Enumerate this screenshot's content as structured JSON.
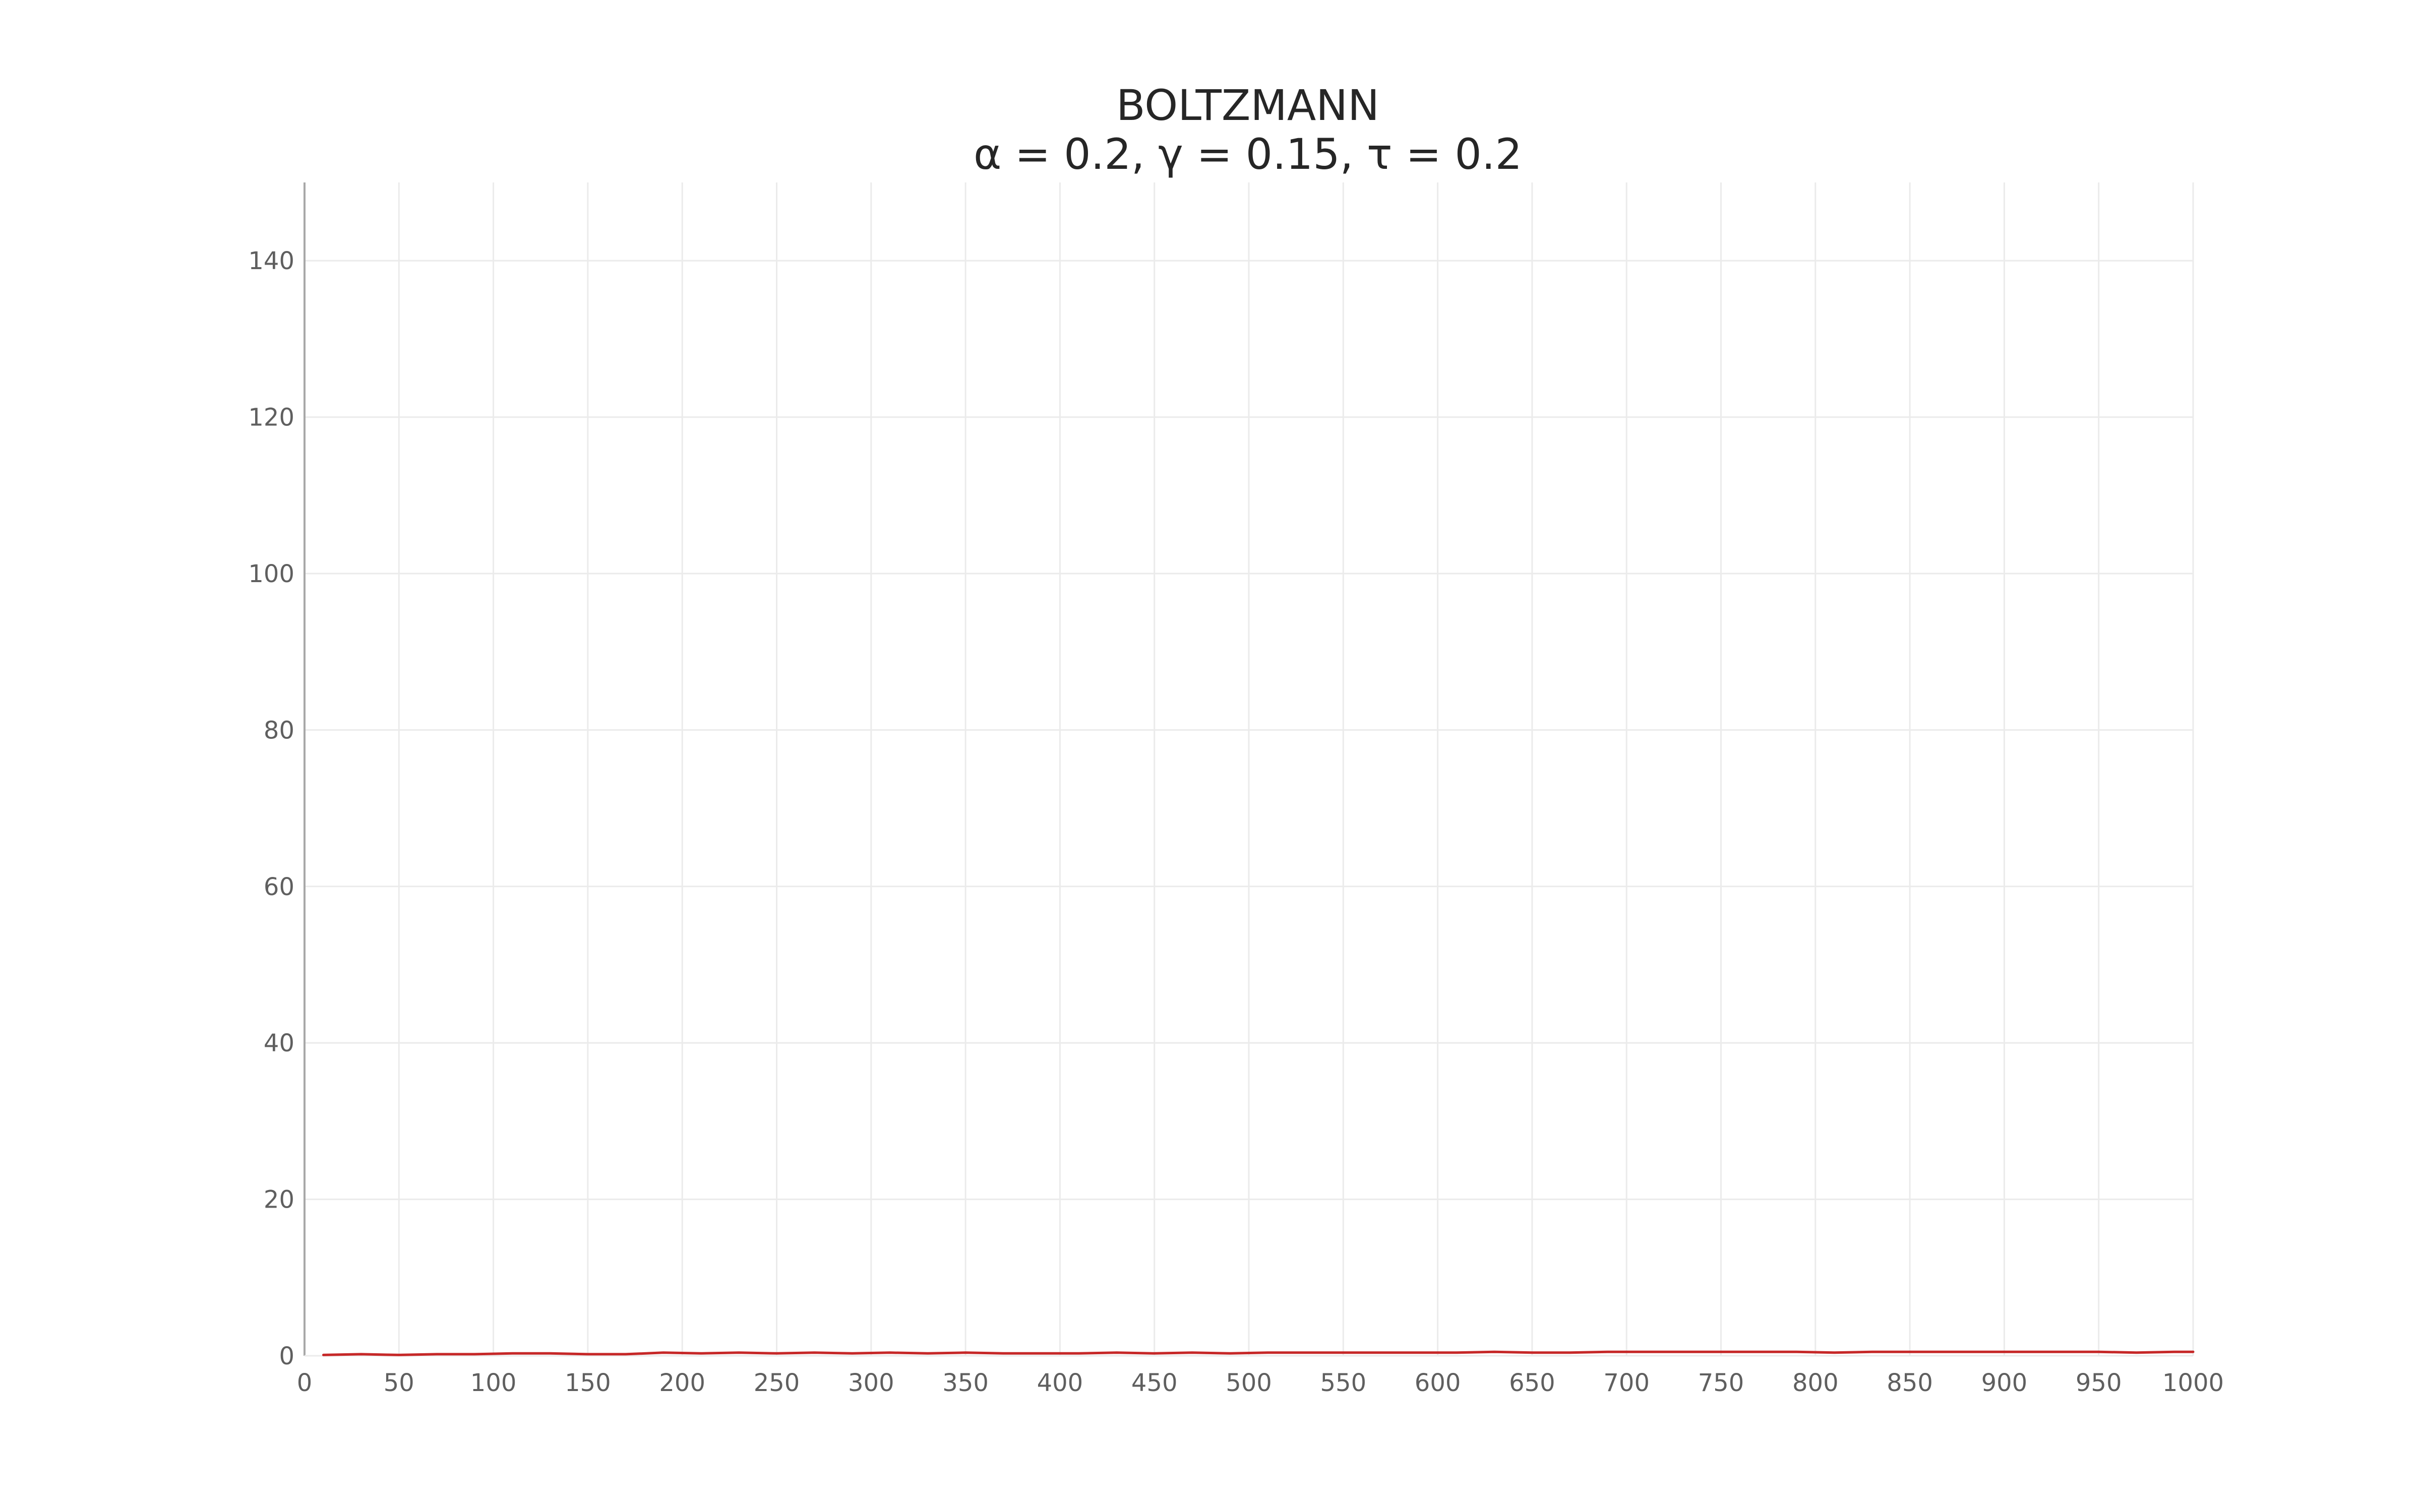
{
  "chart_data": {
    "type": "line",
    "title": "BOLTZMANN",
    "subtitle": "α = 0.2, γ = 0.15, τ = 0.2",
    "xlabel": "",
    "ylabel": "",
    "xlim": [
      0,
      1000
    ],
    "ylim": [
      0,
      150
    ],
    "xticks": [
      0,
      50,
      100,
      150,
      200,
      250,
      300,
      350,
      400,
      450,
      500,
      550,
      600,
      650,
      700,
      750,
      800,
      850,
      900,
      950,
      1000
    ],
    "yticks": [
      0,
      20,
      40,
      60,
      80,
      100,
      120,
      140
    ],
    "grid": true,
    "legend": "none",
    "series": [
      {
        "color": "#c62828",
        "x": [
          10,
          30,
          50,
          70,
          90,
          110,
          130,
          150,
          170,
          190,
          210,
          230,
          250,
          270,
          290,
          310,
          330,
          350,
          370,
          390,
          410,
          430,
          450,
          470,
          490,
          510,
          530,
          550,
          570,
          590,
          610,
          630,
          650,
          670,
          690,
          710,
          730,
          750,
          770,
          790,
          810,
          830,
          850,
          870,
          890,
          910,
          930,
          950,
          970,
          990,
          1000
        ],
        "values": [
          0.1,
          0.2,
          0.1,
          0.2,
          0.2,
          0.3,
          0.3,
          0.2,
          0.2,
          0.4,
          0.3,
          0.4,
          0.3,
          0.4,
          0.3,
          0.4,
          0.3,
          0.4,
          0.3,
          0.3,
          0.3,
          0.4,
          0.3,
          0.4,
          0.3,
          0.4,
          0.4,
          0.4,
          0.4,
          0.4,
          0.4,
          0.5,
          0.4,
          0.4,
          0.5,
          0.5,
          0.5,
          0.5,
          0.5,
          0.5,
          0.4,
          0.5,
          0.5,
          0.5,
          0.5,
          0.5,
          0.5,
          0.5,
          0.4,
          0.5,
          0.5
        ]
      }
    ]
  }
}
